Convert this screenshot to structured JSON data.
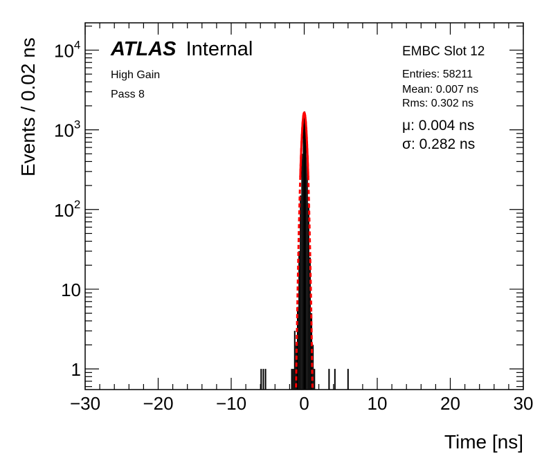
{
  "chart_data": {
    "type": "histogram",
    "xlabel": "Time [ns]",
    "ylabel": "Events / 0.02 ns",
    "xlim": [
      -30,
      30
    ],
    "ylim": [
      0.55,
      22000
    ],
    "yscale": "log",
    "x_ticks": [
      -30,
      -20,
      -10,
      0,
      10,
      20,
      30
    ],
    "x_tick_labels": [
      "−30",
      "−20",
      "−10",
      "0",
      "10",
      "20",
      "30"
    ],
    "y_ticks": [
      {
        "value": 1,
        "base": "1",
        "exp": ""
      },
      {
        "value": 10,
        "base": "10",
        "exp": ""
      },
      {
        "value": 100,
        "base": "10",
        "exp": "2"
      },
      {
        "value": 1000,
        "base": "10",
        "exp": "3"
      },
      {
        "value": 10000,
        "base": "10",
        "exp": "4"
      }
    ],
    "grid": false,
    "series": [
      {
        "style": "histogram",
        "color": "#000000",
        "bins": [
          {
            "x": -5.9,
            "y": 1
          },
          {
            "x": -5.6,
            "y": 1
          },
          {
            "x": -5.3,
            "y": 1
          },
          {
            "x": -1.7,
            "y": 1
          },
          {
            "x": -1.5,
            "y": 1
          },
          {
            "x": -1.3,
            "y": 3
          },
          {
            "x": -1.1,
            "y": 2
          },
          {
            "x": -0.9,
            "y": 6
          },
          {
            "x": -0.7,
            "y": 30
          },
          {
            "x": -0.5,
            "y": 150
          },
          {
            "x": -0.3,
            "y": 500
          },
          {
            "x": -0.1,
            "y": 1400
          },
          {
            "x": 0.05,
            "y": 1700
          },
          {
            "x": 0.2,
            "y": 1200
          },
          {
            "x": 0.4,
            "y": 450
          },
          {
            "x": 0.6,
            "y": 120
          },
          {
            "x": 0.8,
            "y": 25
          },
          {
            "x": 1.0,
            "y": 5
          },
          {
            "x": 1.2,
            "y": 2
          },
          {
            "x": 1.4,
            "y": 1
          },
          {
            "x": 3.4,
            "y": 1
          },
          {
            "x": 4.2,
            "y": 1
          },
          {
            "x": 6.0,
            "y": 1
          }
        ]
      },
      {
        "style": "gaussian-fit",
        "color": "#ff0000",
        "mu": 0.004,
        "sigma": 0.282,
        "amplitude": 1650
      }
    ]
  },
  "labels": {
    "atlas": "ATLAS",
    "atlas_status": "Internal",
    "gain": "High Gain",
    "pass": "Pass 8",
    "slot": "EMBC Slot 12",
    "entries": "Entries: 58211",
    "mean": "Mean: 0.007 ns",
    "rms": "Rms: 0.302 ns",
    "mu": "μ: 0.004 ns",
    "sigma": "σ: 0.282 ns"
  }
}
